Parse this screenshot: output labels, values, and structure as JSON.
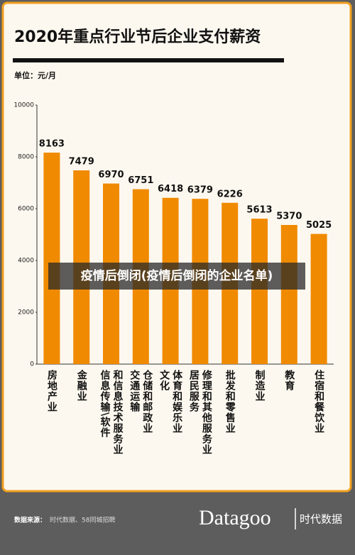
{
  "chart_data": {
    "type": "bar",
    "title": "2020年重点行业节后企业支付薪资",
    "unit_label": "单位：元/月",
    "categories": [
      [
        "房地产业"
      ],
      [
        "金融业"
      ],
      [
        "信息传输\\软件",
        "和信息技术服务业"
      ],
      [
        "交通运输",
        "仓储和邮政业"
      ],
      [
        "文化",
        "体育和娱乐业"
      ],
      [
        "居民服务",
        "修理和其他服务业"
      ],
      [
        "批发和零售业"
      ],
      [
        "制造业"
      ],
      [
        "教育"
      ],
      [
        "住宿和餐饮业"
      ]
    ],
    "values": [
      8163,
      7479,
      6970,
      6751,
      6418,
      6379,
      6226,
      5613,
      5370,
      5025
    ],
    "color": "#f08a00",
    "ylim": [
      0,
      10000
    ],
    "yticks": [
      0,
      2000,
      4000,
      6000,
      8000,
      10000
    ],
    "grid": false
  },
  "watermark": "疫情后倒闭(疫情后倒闭的企业名单)",
  "footer": {
    "source_label": "数据来源：",
    "source": "时代数据、58同城招聘",
    "brand": "Datagoo",
    "brand_cn": "时代数据"
  }
}
